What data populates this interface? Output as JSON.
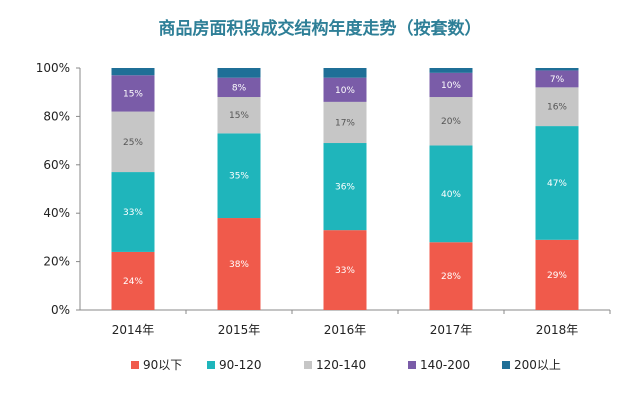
{
  "chart_data": {
    "type": "bar",
    "stacked": true,
    "title": "商品房面积段成交结构年度走势（按套数）",
    "xlabel": "",
    "ylabel": "",
    "categories": [
      "2014年",
      "2015年",
      "2016年",
      "2017年",
      "2018年"
    ],
    "ylim": [
      0,
      100
    ],
    "y_ticks": [
      "0%",
      "20%",
      "40%",
      "60%",
      "80%",
      "100%"
    ],
    "grid": false,
    "legend_position": "bottom",
    "series": [
      {
        "name": "90以下",
        "color": "#f05a4b",
        "values": [
          24,
          38,
          33,
          28,
          29
        ],
        "labels": [
          "24%",
          "38%",
          "33%",
          "28%",
          "29%"
        ]
      },
      {
        "name": "90-120",
        "color": "#1fb5bb",
        "values": [
          33,
          35,
          36,
          40,
          47
        ],
        "labels": [
          "33%",
          "35%",
          "36%",
          "40%",
          "47%"
        ]
      },
      {
        "name": "120-140",
        "color": "#c6c6c6",
        "values": [
          25,
          15,
          17,
          20,
          16
        ],
        "labels": [
          "25%",
          "15%",
          "17%",
          "20%",
          "16%"
        ]
      },
      {
        "name": "140-200",
        "color": "#7a5ca8",
        "values": [
          15,
          8,
          10,
          10,
          7
        ],
        "labels": [
          "15%",
          "8%",
          "10%",
          "10%",
          "7%"
        ]
      },
      {
        "name": "200以上",
        "color": "#1f6f97",
        "values": [
          3,
          4,
          4,
          2,
          1
        ],
        "labels": [
          "",
          "",
          "",
          "",
          ""
        ]
      }
    ]
  }
}
